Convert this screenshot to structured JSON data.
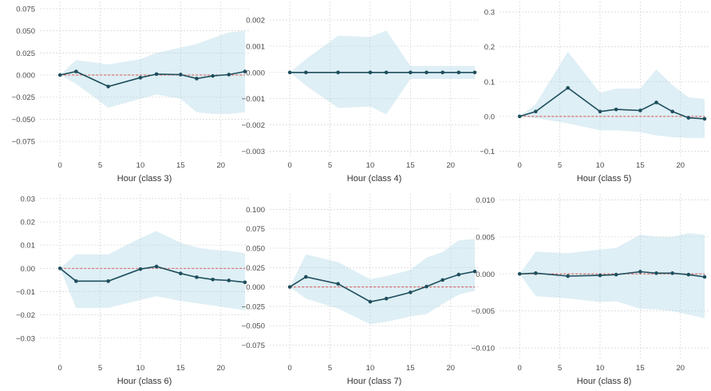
{
  "colors": {
    "line": "#1e4e5c",
    "band": "#add8e6",
    "reference": "#d9534f",
    "grid": "#d9d9d9"
  },
  "chart_data": [
    {
      "type": "line",
      "xlabel": "Hour (class 3)",
      "ylabel": "",
      "x": [
        0,
        2,
        6,
        10,
        12,
        15,
        17,
        19,
        21,
        23
      ],
      "series": [
        {
          "values": [
            0.0,
            0.004,
            -0.013,
            -0.003,
            0.001,
            0.0005,
            -0.004,
            -0.001,
            0.0005,
            0.004
          ]
        }
      ],
      "band_lower": [
        0.0,
        -0.01,
        -0.037,
        -0.027,
        -0.022,
        -0.027,
        -0.042,
        -0.044,
        -0.044,
        -0.042
      ],
      "band_upper": [
        0.0,
        0.017,
        0.012,
        0.018,
        0.025,
        0.031,
        0.035,
        0.042,
        0.048,
        0.05
      ],
      "reference_y": 0,
      "xlim": [
        -2.5,
        23.5
      ],
      "xticks": [
        0,
        5,
        10,
        15,
        20
      ],
      "ylim": [
        -0.092,
        0.083
      ],
      "yticks": [
        -0.075,
        -0.05,
        -0.025,
        0.0,
        0.025,
        0.05,
        0.075
      ],
      "yticklabels": [
        "−0.075",
        "−0.050",
        "−0.025",
        "0.000",
        "0.025",
        "0.050",
        "0.075"
      ],
      "grid": true
    },
    {
      "type": "line",
      "xlabel": "Hour (class 4)",
      "ylabel": "",
      "x": [
        0,
        2,
        6,
        10,
        12,
        15,
        17,
        19,
        21,
        23
      ],
      "series": [
        {
          "values": [
            0.0,
            0.0,
            0.0,
            0.0,
            0.0,
            0.0,
            0.0,
            0.0,
            0.0,
            0.0
          ]
        }
      ],
      "band_lower": [
        0.0,
        -0.0005,
        -0.00135,
        -0.0013,
        -0.0016,
        -0.00025,
        -0.00025,
        -0.00025,
        -0.00025,
        -0.00025
      ],
      "band_upper": [
        0.0,
        0.0005,
        0.0014,
        0.00135,
        0.0016,
        0.00025,
        0.00025,
        0.00025,
        0.00025,
        0.00025
      ],
      "reference_y": 0,
      "xlim": [
        -2.5,
        23.5
      ],
      "xticks": [
        0,
        5,
        10,
        15,
        20
      ],
      "ylim": [
        -0.0032,
        0.0027
      ],
      "yticks": [
        -0.003,
        -0.002,
        -0.001,
        0.0,
        0.001,
        0.002
      ],
      "yticklabels": [
        "−0.003",
        "−0.002",
        "−0.001",
        "0.000",
        "0.001",
        "0.002"
      ],
      "grid": true
    },
    {
      "type": "line",
      "xlabel": "Hour (class 5)",
      "ylabel": "",
      "x": [
        0,
        2,
        6,
        10,
        12,
        15,
        17,
        19,
        21,
        23
      ],
      "series": [
        {
          "values": [
            0.0,
            0.014,
            0.082,
            0.014,
            0.02,
            0.017,
            0.04,
            0.014,
            -0.004,
            -0.007
          ]
        }
      ],
      "band_lower": [
        0.0,
        -0.005,
        -0.02,
        -0.04,
        -0.04,
        -0.045,
        -0.055,
        -0.06,
        -0.062,
        -0.062
      ],
      "band_upper": [
        0.0,
        0.035,
        0.186,
        0.068,
        0.08,
        0.08,
        0.135,
        0.09,
        0.055,
        0.05
      ],
      "reference_y": 0,
      "xlim": [
        -2.5,
        23.5
      ],
      "xticks": [
        0,
        5,
        10,
        15,
        20
      ],
      "ylim": [
        -0.115,
        0.33
      ],
      "yticks": [
        -0.1,
        0.0,
        0.1,
        0.2,
        0.3
      ],
      "yticklabels": [
        "−0.1",
        "0.0",
        "0.1",
        "0.2",
        "0.3"
      ],
      "grid": true
    },
    {
      "type": "line",
      "xlabel": "Hour (class 6)",
      "ylabel": "",
      "x": [
        0,
        2,
        6,
        10,
        12,
        15,
        17,
        19,
        21,
        23
      ],
      "series": [
        {
          "values": [
            0.0,
            -0.0055,
            -0.0055,
            -0.0003,
            0.0008,
            -0.0022,
            -0.0038,
            -0.0048,
            -0.0052,
            -0.006
          ]
        }
      ],
      "band_lower": [
        0.0,
        -0.017,
        -0.017,
        -0.0135,
        -0.012,
        -0.014,
        -0.015,
        -0.016,
        -0.017,
        -0.018
      ],
      "band_upper": [
        0.0,
        0.006,
        0.006,
        0.013,
        0.016,
        0.011,
        0.009,
        0.008,
        0.0075,
        0.0065
      ],
      "reference_y": 0,
      "xlim": [
        -2.5,
        23.5
      ],
      "xticks": [
        0,
        5,
        10,
        15,
        20
      ],
      "ylim": [
        -0.039,
        0.032
      ],
      "yticks": [
        -0.03,
        -0.02,
        -0.01,
        0.0,
        0.01,
        0.02,
        0.03
      ],
      "yticklabels": [
        "−0.03",
        "−0.02",
        "−0.01",
        "0.00",
        "0.01",
        "0.02",
        "0.03"
      ],
      "grid": true
    },
    {
      "type": "line",
      "xlabel": "Hour (class 7)",
      "ylabel": "",
      "x": [
        0,
        2,
        6,
        10,
        12,
        15,
        17,
        19,
        21,
        23
      ],
      "series": [
        {
          "values": [
            0.0,
            0.013,
            0.004,
            -0.019,
            -0.015,
            -0.007,
            0.0005,
            0.009,
            0.016,
            0.02
          ]
        }
      ],
      "band_lower": [
        0.0,
        -0.015,
        -0.028,
        -0.048,
        -0.045,
        -0.038,
        -0.035,
        -0.022,
        -0.01,
        -0.005
      ],
      "band_upper": [
        0.0,
        0.042,
        0.032,
        0.01,
        0.014,
        0.022,
        0.038,
        0.045,
        0.06,
        0.062
      ],
      "reference_y": 0,
      "xlim": [
        -2.5,
        23.5
      ],
      "xticks": [
        0,
        5,
        10,
        15,
        20
      ],
      "ylim": [
        -0.093,
        0.12
      ],
      "yticks": [
        -0.075,
        -0.05,
        -0.025,
        0.0,
        0.025,
        0.05,
        0.075,
        0.1
      ],
      "yticklabels": [
        "−0.075",
        "−0.050",
        "−0.025",
        "0.000",
        "0.025",
        "0.050",
        "0.075",
        "0.100"
      ],
      "grid": true
    },
    {
      "type": "line",
      "xlabel": "Hour (class 8)",
      "ylabel": "",
      "x": [
        0,
        2,
        6,
        10,
        12,
        15,
        17,
        19,
        21,
        23
      ],
      "series": [
        {
          "values": [
            0.0,
            0.0001,
            -0.0003,
            -0.0002,
            -0.0001,
            0.0003,
            0.0001,
            0.0001,
            -0.0001,
            -0.0004
          ]
        }
      ],
      "band_lower": [
        0.0,
        -0.003,
        -0.0033,
        -0.0038,
        -0.0037,
        -0.0047,
        -0.0048,
        -0.005,
        -0.0055,
        -0.006
      ],
      "band_upper": [
        0.0,
        0.003,
        0.0028,
        0.0033,
        0.0035,
        0.0053,
        0.005,
        0.005,
        0.0055,
        0.0053
      ],
      "reference_y": 0,
      "xlim": [
        -2.5,
        23.5
      ],
      "xticks": [
        0,
        5,
        10,
        15,
        20
      ],
      "ylim": [
        -0.0115,
        0.0108
      ],
      "yticks": [
        -0.01,
        -0.005,
        0.0,
        0.005,
        0.01
      ],
      "yticklabels": [
        "−0.010",
        "−0.005",
        "0.000",
        "0.005",
        "0.010"
      ],
      "grid": true
    }
  ]
}
